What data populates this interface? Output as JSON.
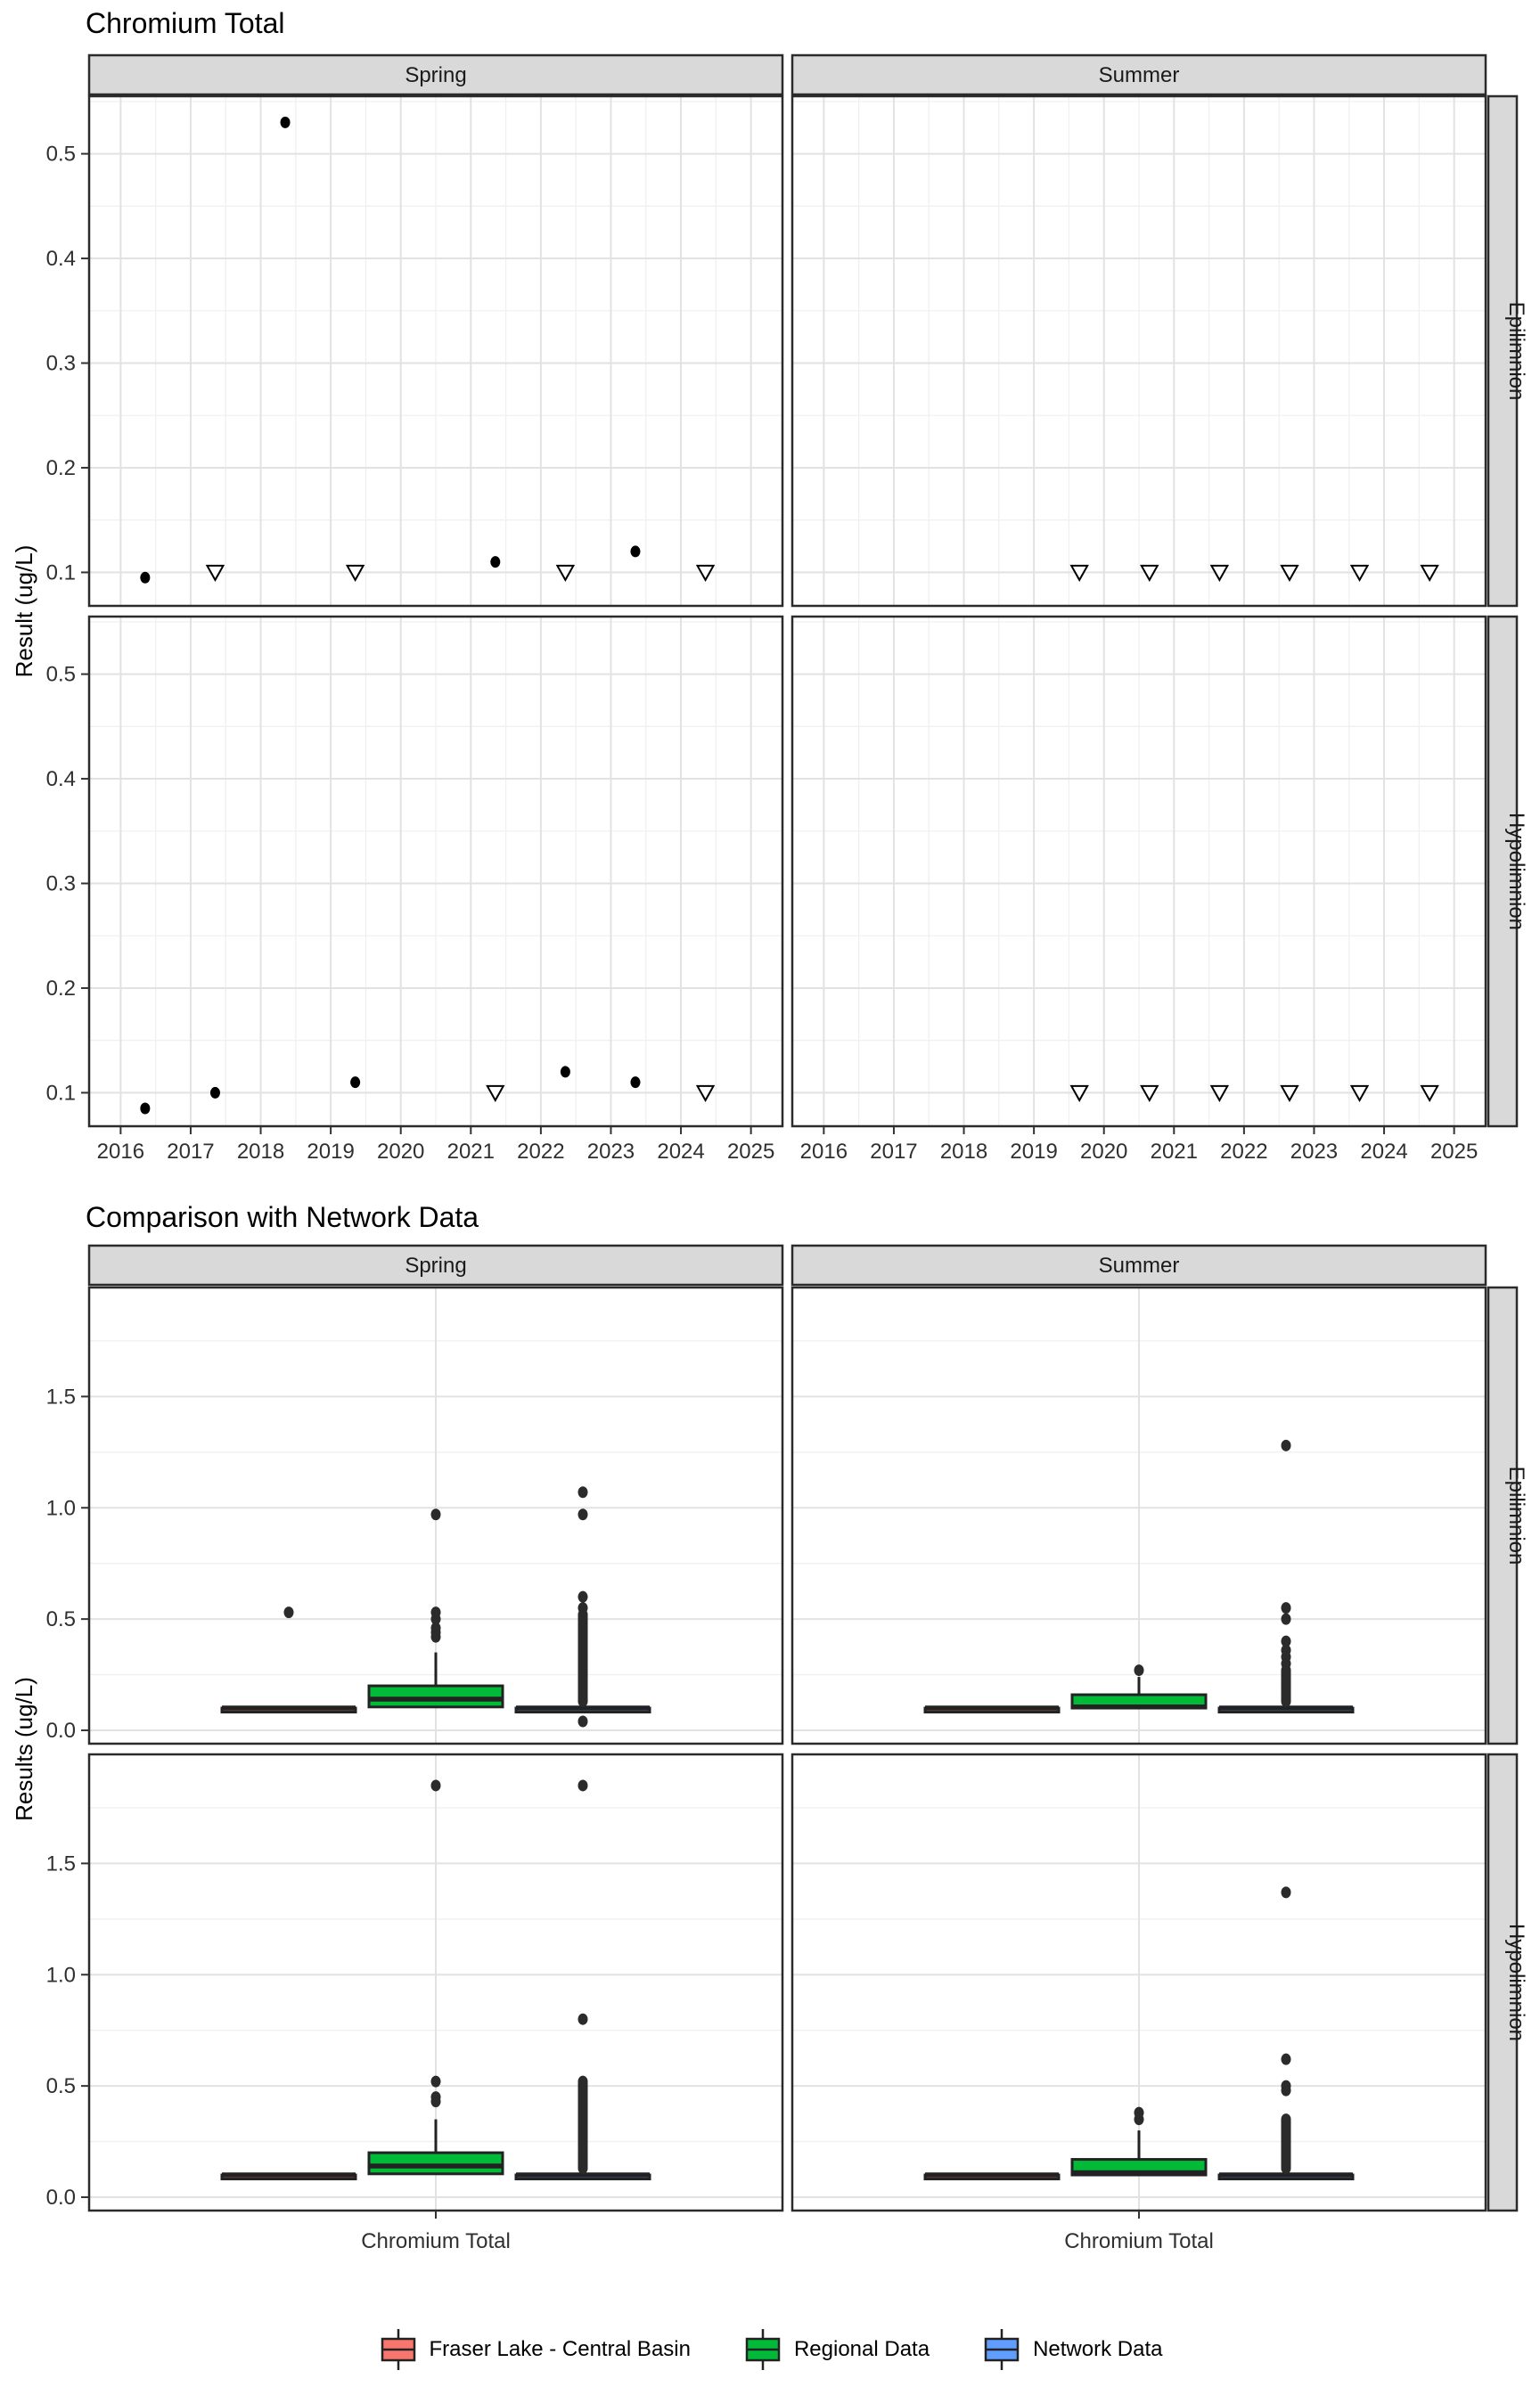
{
  "page": {
    "background": "#FFFFFF"
  },
  "colors": {
    "strip_fill": "#D9D9D9",
    "panel_border": "#2B2B2B",
    "grid_major": "#E2E2E2",
    "grid_minor": "#F0F0F0",
    "tick": "#333333",
    "tick_label": "#303030",
    "point": "#000000",
    "outlier": "#2B2B2B",
    "fraser": "#F8766D",
    "regional": "#00BA38",
    "network": "#619CFF"
  },
  "legend": {
    "items": [
      {
        "key": "fraser",
        "label": "Fraser Lake - Central Basin",
        "color": "#F8766D"
      },
      {
        "key": "regional",
        "label": "Regional Data",
        "color": "#00BA38"
      },
      {
        "key": "network",
        "label": "Network Data",
        "color": "#619CFF"
      }
    ]
  },
  "chart_data": [
    {
      "type": "scatter",
      "title": "Chromium Total",
      "ylabel": "Result (ug/L)",
      "col_facets": [
        "Spring",
        "Summer"
      ],
      "row_facets": [
        "Epilimnion",
        "Hypolimnion"
      ],
      "x_domain": [
        2015.55,
        2025.45
      ],
      "y_domain": [
        0.068,
        0.555
      ],
      "x_ticks": [
        2016,
        2017,
        2018,
        2019,
        2020,
        2021,
        2022,
        2023,
        2024,
        2025
      ],
      "x_tick_labels": [
        "2016",
        "2017",
        "2018",
        "2019",
        "2020",
        "2021",
        "2022",
        "2023",
        "2024",
        "2025"
      ],
      "x_minor": [
        2016.5,
        2017.5,
        2018.5,
        2019.5,
        2020.5,
        2021.5,
        2022.5,
        2023.5,
        2024.5
      ],
      "y_ticks": [
        0.1,
        0.2,
        0.3,
        0.4,
        0.5
      ],
      "y_tick_labels": [
        "0.1",
        "0.2",
        "0.3",
        "0.4",
        "0.5"
      ],
      "y_minor": [
        0.15,
        0.25,
        0.35,
        0.45,
        0.55
      ],
      "marker_legend": {
        "detect": "filled circle (measured result)",
        "nondetect": "open down triangle (non-detect at 0.1)"
      },
      "panels": [
        {
          "col": 0,
          "row": 0,
          "detect": [
            [
              2016.35,
              0.095
            ],
            [
              2018.35,
              0.53
            ],
            [
              2021.35,
              0.11
            ],
            [
              2023.35,
              0.12
            ]
          ],
          "nondetect": [
            [
              2017.35,
              0.1
            ],
            [
              2019.35,
              0.1
            ],
            [
              2022.35,
              0.1
            ],
            [
              2024.35,
              0.1
            ]
          ]
        },
        {
          "col": 1,
          "row": 0,
          "detect": [],
          "nondetect": [
            [
              2019.65,
              0.1
            ],
            [
              2020.65,
              0.1
            ],
            [
              2021.65,
              0.1
            ],
            [
              2022.65,
              0.1
            ],
            [
              2023.65,
              0.1
            ],
            [
              2024.65,
              0.1
            ]
          ]
        },
        {
          "col": 0,
          "row": 1,
          "detect": [
            [
              2016.35,
              0.085
            ],
            [
              2017.35,
              0.1
            ],
            [
              2019.35,
              0.11
            ],
            [
              2022.35,
              0.12
            ],
            [
              2023.35,
              0.11
            ]
          ],
          "nondetect": [
            [
              2021.35,
              0.1
            ],
            [
              2024.35,
              0.1
            ]
          ]
        },
        {
          "col": 1,
          "row": 1,
          "detect": [],
          "nondetect": [
            [
              2019.65,
              0.1
            ],
            [
              2020.65,
              0.1
            ],
            [
              2021.65,
              0.1
            ],
            [
              2022.65,
              0.1
            ],
            [
              2023.65,
              0.1
            ],
            [
              2024.65,
              0.1
            ]
          ]
        }
      ]
    },
    {
      "type": "box",
      "title": "Comparison with Network Data",
      "ylabel": "Results (ug/L)",
      "x_category": "Chromium Total",
      "col_facets": [
        "Spring",
        "Summer"
      ],
      "row_facets": [
        "Epilimnion",
        "Hypolimnion"
      ],
      "y_domain": [
        -0.06,
        1.99
      ],
      "y_ticks": [
        0,
        0.5,
        1.0,
        1.5
      ],
      "y_tick_labels": [
        "0.0",
        "0.5",
        "1.0",
        "1.5"
      ],
      "y_minor": [
        0.25,
        0.75,
        1.25,
        1.75
      ],
      "groups": [
        "fraser",
        "regional",
        "network"
      ],
      "panels": [
        {
          "col": 0,
          "row": 0,
          "boxes": [
            {
              "group": "fraser",
              "lo": 0.1,
              "q1": 0.1,
              "med": 0.1,
              "q3": 0.1,
              "hi": 0.1,
              "outliers": [
                0.53
              ]
            },
            {
              "group": "regional",
              "lo": 0.1,
              "q1": 0.105,
              "med": 0.14,
              "q3": 0.2,
              "hi": 0.35,
              "outliers": [
                0.42,
                0.44,
                0.46,
                0.5,
                0.53,
                0.97
              ]
            },
            {
              "group": "network",
              "lo": 0.1,
              "q1": 0.1,
              "med": 0.1,
              "q3": 0.1,
              "hi": 0.1,
              "outliers": [
                0.13,
                0.14,
                0.15,
                0.16,
                0.17,
                0.18,
                0.19,
                0.2,
                0.21,
                0.22,
                0.23,
                0.24,
                0.25,
                0.26,
                0.27,
                0.28,
                0.29,
                0.3,
                0.31,
                0.32,
                0.33,
                0.34,
                0.35,
                0.36,
                0.37,
                0.38,
                0.39,
                0.4,
                0.41,
                0.42,
                0.43,
                0.44,
                0.45,
                0.46,
                0.47,
                0.48,
                0.49,
                0.5,
                0.51,
                0.52,
                0.55,
                0.6,
                0.97,
                1.07,
                0.04
              ]
            }
          ]
        },
        {
          "col": 1,
          "row": 0,
          "boxes": [
            {
              "group": "fraser",
              "lo": 0.1,
              "q1": 0.1,
              "med": 0.1,
              "q3": 0.1,
              "hi": 0.1,
              "outliers": []
            },
            {
              "group": "regional",
              "lo": 0.1,
              "q1": 0.1,
              "med": 0.105,
              "q3": 0.16,
              "hi": 0.24,
              "outliers": [
                0.27
              ]
            },
            {
              "group": "network",
              "lo": 0.1,
              "q1": 0.1,
              "med": 0.1,
              "q3": 0.1,
              "hi": 0.1,
              "outliers": [
                0.13,
                0.14,
                0.15,
                0.16,
                0.17,
                0.18,
                0.19,
                0.2,
                0.21,
                0.22,
                0.23,
                0.24,
                0.25,
                0.26,
                0.27,
                0.3,
                0.33,
                0.36,
                0.4,
                0.5,
                0.55,
                1.28
              ]
            }
          ]
        },
        {
          "col": 0,
          "row": 1,
          "boxes": [
            {
              "group": "fraser",
              "lo": 0.1,
              "q1": 0.1,
              "med": 0.1,
              "q3": 0.1,
              "hi": 0.1,
              "outliers": []
            },
            {
              "group": "regional",
              "lo": 0.1,
              "q1": 0.105,
              "med": 0.14,
              "q3": 0.2,
              "hi": 0.35,
              "outliers": [
                0.43,
                0.45,
                0.52,
                1.85
              ]
            },
            {
              "group": "network",
              "lo": 0.1,
              "q1": 0.1,
              "med": 0.1,
              "q3": 0.1,
              "hi": 0.1,
              "outliers": [
                0.13,
                0.14,
                0.15,
                0.16,
                0.17,
                0.18,
                0.19,
                0.2,
                0.21,
                0.22,
                0.23,
                0.24,
                0.25,
                0.26,
                0.27,
                0.28,
                0.29,
                0.3,
                0.31,
                0.32,
                0.33,
                0.34,
                0.35,
                0.36,
                0.37,
                0.38,
                0.39,
                0.4,
                0.41,
                0.42,
                0.43,
                0.44,
                0.45,
                0.46,
                0.47,
                0.48,
                0.49,
                0.5,
                0.51,
                0.52,
                0.8,
                1.85
              ]
            }
          ]
        },
        {
          "col": 1,
          "row": 1,
          "boxes": [
            {
              "group": "fraser",
              "lo": 0.1,
              "q1": 0.1,
              "med": 0.1,
              "q3": 0.1,
              "hi": 0.1,
              "outliers": []
            },
            {
              "group": "regional",
              "lo": 0.1,
              "q1": 0.1,
              "med": 0.11,
              "q3": 0.17,
              "hi": 0.3,
              "outliers": [
                0.35,
                0.38
              ]
            },
            {
              "group": "network",
              "lo": 0.1,
              "q1": 0.1,
              "med": 0.1,
              "q3": 0.1,
              "hi": 0.1,
              "outliers": [
                0.13,
                0.14,
                0.15,
                0.16,
                0.17,
                0.18,
                0.19,
                0.2,
                0.21,
                0.22,
                0.23,
                0.24,
                0.25,
                0.26,
                0.27,
                0.28,
                0.29,
                0.3,
                0.31,
                0.32,
                0.33,
                0.34,
                0.35,
                0.48,
                0.5,
                0.62,
                1.37
              ]
            }
          ]
        }
      ]
    }
  ]
}
